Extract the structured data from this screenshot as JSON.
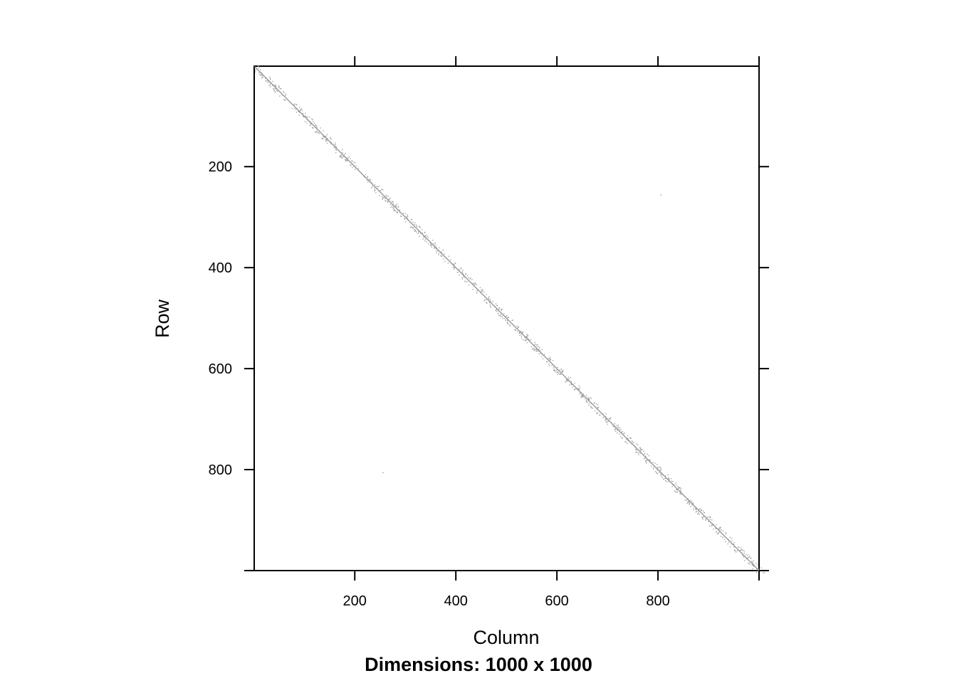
{
  "chart_data": {
    "type": "heatmap",
    "title": "",
    "subtitle": "Dimensions: 1000 x 1000",
    "xlabel": "Column",
    "ylabel": "Row",
    "xlim": [
      1,
      1000
    ],
    "ylim": [
      1000,
      1
    ],
    "x_ticks": [
      200,
      400,
      600,
      800
    ],
    "y_ticks": [
      200,
      400,
      600,
      800
    ],
    "x_tick_labels": [
      "200",
      "400",
      "600",
      "800"
    ],
    "y_tick_labels": [
      "200",
      "400",
      "600",
      "800"
    ],
    "matrix_dims": [
      1000,
      1000
    ],
    "structure": "banded sparse matrix: nonzeros concentrated along main diagonal with small block clusters",
    "diagonal": {
      "from": [
        1,
        1
      ],
      "to": [
        1000,
        1000
      ]
    },
    "blocks": [
      {
        "row": 15,
        "col": 15
      },
      {
        "row": 35,
        "col": 35
      },
      {
        "row": 55,
        "col": 55
      },
      {
        "row": 90,
        "col": 90
      },
      {
        "row": 110,
        "col": 110
      },
      {
        "row": 130,
        "col": 130
      },
      {
        "row": 150,
        "col": 150
      },
      {
        "row": 175,
        "col": 175
      },
      {
        "row": 195,
        "col": 195
      },
      {
        "row": 230,
        "col": 230
      },
      {
        "row": 255,
        "col": 255
      },
      {
        "row": 270,
        "col": 270
      },
      {
        "row": 290,
        "col": 290
      },
      {
        "row": 310,
        "col": 310
      },
      {
        "row": 330,
        "col": 330
      },
      {
        "row": 350,
        "col": 350
      },
      {
        "row": 375,
        "col": 375
      },
      {
        "row": 405,
        "col": 405
      },
      {
        "row": 425,
        "col": 425
      },
      {
        "row": 455,
        "col": 455
      },
      {
        "row": 475,
        "col": 475
      },
      {
        "row": 490,
        "col": 490
      },
      {
        "row": 515,
        "col": 515
      },
      {
        "row": 530,
        "col": 530
      },
      {
        "row": 550,
        "col": 550
      },
      {
        "row": 570,
        "col": 570
      },
      {
        "row": 595,
        "col": 595
      },
      {
        "row": 610,
        "col": 610
      },
      {
        "row": 630,
        "col": 630
      },
      {
        "row": 650,
        "col": 650
      },
      {
        "row": 670,
        "col": 670
      },
      {
        "row": 690,
        "col": 690
      },
      {
        "row": 710,
        "col": 710
      },
      {
        "row": 730,
        "col": 730
      },
      {
        "row": 750,
        "col": 750
      },
      {
        "row": 770,
        "col": 770
      },
      {
        "row": 790,
        "col": 790
      },
      {
        "row": 810,
        "col": 810
      },
      {
        "row": 830,
        "col": 830
      },
      {
        "row": 850,
        "col": 850
      },
      {
        "row": 870,
        "col": 870
      },
      {
        "row": 890,
        "col": 890
      },
      {
        "row": 910,
        "col": 910
      },
      {
        "row": 930,
        "col": 930
      },
      {
        "row": 955,
        "col": 955
      },
      {
        "row": 975,
        "col": 975
      },
      {
        "row": 995,
        "col": 995
      }
    ],
    "off_diagonal_points": [
      {
        "row": 255,
        "col": 805
      },
      {
        "row": 805,
        "col": 255
      }
    ],
    "colors": {
      "nonzero": "#9a9a9a",
      "diagonal": "#8a8a8a",
      "axis": "#000000"
    }
  }
}
